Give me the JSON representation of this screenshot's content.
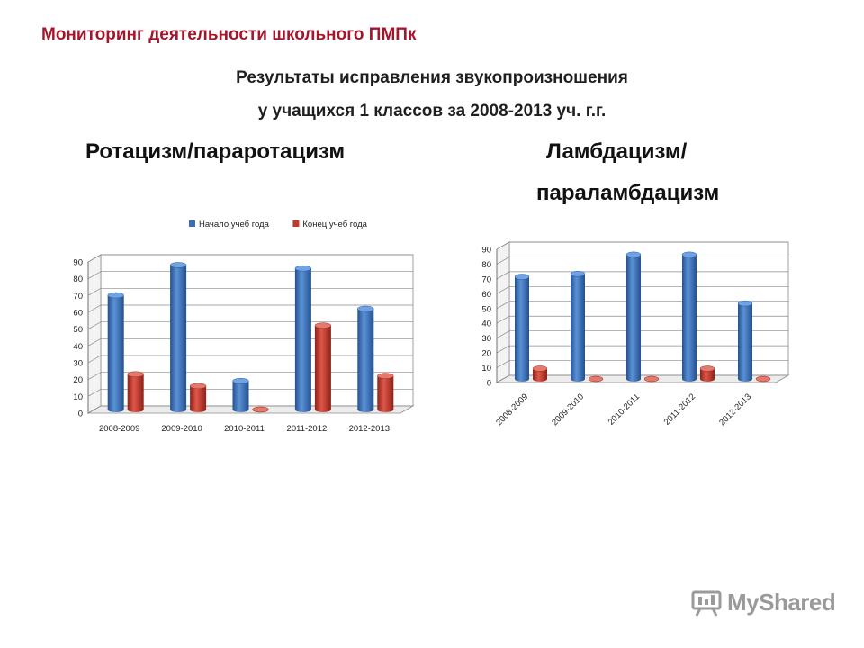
{
  "header": {
    "title": "Мониторинг деятельности школьного ПМПк"
  },
  "subtitle": {
    "line1": "Результаты исправления звукопроизношения",
    "line2": "у учащихся 1 классов за 2008-2013 уч. г.г."
  },
  "colors": {
    "title": "#a5162c",
    "series_blue": "#3a6fb5",
    "series_red": "#c0392b"
  },
  "logo": {
    "text": "MyShared",
    "icon": "presentation-board-icon"
  },
  "charts": {
    "left": {
      "heading": "Ротацизм/параротацизм"
    },
    "right": {
      "heading_line1": "Ламбдацизм/",
      "heading_line2": "параламбдацизм"
    }
  },
  "chart_data": [
    {
      "type": "bar",
      "title": "Ротацизм/параротацизм",
      "categories": [
        "2008-2009",
        "2009-2010",
        "2010-2011",
        "2011-2012",
        "2012-2013"
      ],
      "series": [
        {
          "name": "Начало учеб года",
          "values": [
            68,
            86,
            17,
            84,
            60
          ]
        },
        {
          "name": "Конец учеб года",
          "values": [
            21,
            14,
            0,
            50,
            20
          ]
        }
      ],
      "ylim": [
        0,
        90
      ],
      "yticks": [
        "0",
        "10",
        "20",
        "30",
        "40",
        "50",
        "60",
        "70",
        "80",
        "90"
      ],
      "legend": "top",
      "grid": true
    },
    {
      "type": "bar",
      "title": "Ламбдацизм/параламбдацизм",
      "categories": [
        "2008-2009",
        "2009-2010",
        "2010-2011",
        "2011-2012",
        "2012-2013"
      ],
      "series": [
        {
          "values": [
            69,
            71,
            84,
            84,
            51
          ]
        },
        {
          "values": [
            7,
            0,
            0,
            7,
            0
          ]
        }
      ],
      "ylim": [
        0,
        90
      ],
      "yticks": [
        "0",
        "10",
        "20",
        "30",
        "40",
        "50",
        "60",
        "70",
        "80",
        "90"
      ],
      "legend": "none",
      "grid": true
    }
  ]
}
